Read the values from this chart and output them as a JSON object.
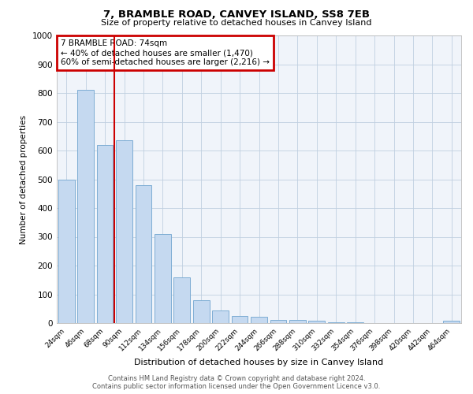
{
  "title": "7, BRAMBLE ROAD, CANVEY ISLAND, SS8 7EB",
  "subtitle": "Size of property relative to detached houses in Canvey Island",
  "xlabel": "Distribution of detached houses by size in Canvey Island",
  "ylabel": "Number of detached properties",
  "footer_line1": "Contains HM Land Registry data © Crown copyright and database right 2024.",
  "footer_line2": "Contains public sector information licensed under the Open Government Licence v3.0.",
  "bar_labels": [
    "24sqm",
    "46sqm",
    "68sqm",
    "90sqm",
    "112sqm",
    "134sqm",
    "156sqm",
    "178sqm",
    "200sqm",
    "222sqm",
    "244sqm",
    "266sqm",
    "288sqm",
    "310sqm",
    "332sqm",
    "354sqm",
    "376sqm",
    "398sqm",
    "420sqm",
    "442sqm",
    "464sqm"
  ],
  "bar_values": [
    500,
    810,
    620,
    635,
    480,
    310,
    160,
    80,
    45,
    25,
    22,
    12,
    10,
    8,
    2,
    2,
    1,
    1,
    0,
    0,
    8
  ],
  "bar_color": "#c5d9f0",
  "bar_edge_color": "#7eadd4",
  "vline_x": 2.5,
  "vline_color": "#cc0000",
  "annotation_title": "7 BRAMBLE ROAD: 74sqm",
  "annotation_line1": "← 40% of detached houses are smaller (1,470)",
  "annotation_line2": "60% of semi-detached houses are larger (2,216) →",
  "annotation_box_color": "#cc0000",
  "ylim": [
    0,
    1000
  ],
  "yticks": [
    0,
    100,
    200,
    300,
    400,
    500,
    600,
    700,
    800,
    900,
    1000
  ],
  "grid_color": "#c0cfe0",
  "bg_color": "#f0f4fa"
}
